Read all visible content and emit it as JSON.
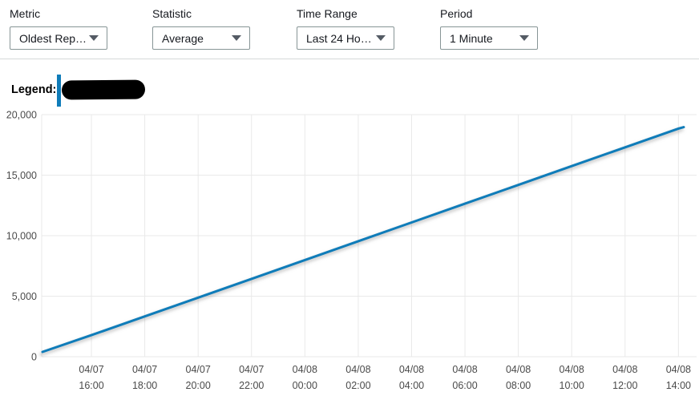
{
  "controls": {
    "items": [
      {
        "label": "Metric",
        "value": "Oldest Rep…"
      },
      {
        "label": "Statistic",
        "value": "Average"
      },
      {
        "label": "Time Range",
        "value": "Last 24 Ho…"
      },
      {
        "label": "Period",
        "value": "1 Minute"
      }
    ]
  },
  "legend": {
    "label": "Legend:",
    "color": "#0f7cb9",
    "entry_text": ""
  },
  "chart_data": {
    "type": "line",
    "title": "",
    "xlabel": "",
    "ylabel": "",
    "ylim": [
      0,
      20000
    ],
    "y_ticks": [
      0,
      5000,
      10000,
      15000,
      20000
    ],
    "x_domain": [
      "04/07 14:10",
      "04/08 14:12"
    ],
    "x_ticks": [
      {
        "date": "04/07",
        "time": "16:00"
      },
      {
        "date": "04/07",
        "time": "18:00"
      },
      {
        "date": "04/07",
        "time": "20:00"
      },
      {
        "date": "04/07",
        "time": "22:00"
      },
      {
        "date": "04/08",
        "time": "00:00"
      },
      {
        "date": "04/08",
        "time": "02:00"
      },
      {
        "date": "04/08",
        "time": "04:00"
      },
      {
        "date": "04/08",
        "time": "06:00"
      },
      {
        "date": "04/08",
        "time": "08:00"
      },
      {
        "date": "04/08",
        "time": "10:00"
      },
      {
        "date": "04/08",
        "time": "12:00"
      },
      {
        "date": "04/08",
        "time": "14:00"
      }
    ],
    "grid": true,
    "legend_position": "top-left",
    "series": [
      {
        "name": "",
        "color": "#0f7cb9",
        "points": [
          [
            "04/07 14:10",
            400
          ],
          [
            "04/07 16:00",
            1780
          ],
          [
            "04/07 18:00",
            3330
          ],
          [
            "04/07 20:00",
            4880
          ],
          [
            "04/07 22:00",
            6430
          ],
          [
            "04/08 00:00",
            7990
          ],
          [
            "04/08 02:00",
            9540
          ],
          [
            "04/08 04:00",
            11090
          ],
          [
            "04/08 06:00",
            12640
          ],
          [
            "04/08 08:00",
            14190
          ],
          [
            "04/08 10:00",
            15750
          ],
          [
            "04/08 12:00",
            17300
          ],
          [
            "04/08 14:00",
            18850
          ],
          [
            "04/08 14:12",
            18970
          ]
        ]
      }
    ]
  },
  "colors": {
    "line": "#0f7cb9",
    "grid": "#e9e9e9",
    "tick_text": "#4a4a4a",
    "control_border": "#879596",
    "caret": "#545b64"
  }
}
